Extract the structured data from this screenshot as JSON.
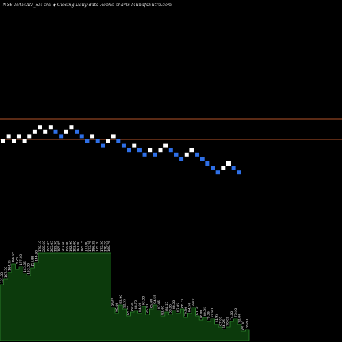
{
  "header": {
    "title": "NSE NAMAN_SM 5% ⬥ Closing Daily data Renko charts MunafaSutra.com"
  },
  "colors": {
    "background": "#000000",
    "up_brick": "#ffffff",
    "down_brick": "#2e6fe6",
    "reference_line": "#b5532a",
    "volume_fill": "#0c3a0c",
    "volume_stroke": "#2f8a2f"
  },
  "chart_data": {
    "type": "renko",
    "brick_percent": 5,
    "reference_lines": [
      {
        "label": "upper"
      },
      {
        "label": "lower"
      }
    ],
    "bricks": [
      {
        "i": 0,
        "level": 0,
        "dir": "up"
      },
      {
        "i": 1,
        "level": 1,
        "dir": "up"
      },
      {
        "i": 2,
        "level": 0,
        "dir": "up"
      },
      {
        "i": 3,
        "level": 1,
        "dir": "up"
      },
      {
        "i": 4,
        "level": 0,
        "dir": "up"
      },
      {
        "i": 5,
        "level": 1,
        "dir": "up"
      },
      {
        "i": 6,
        "level": 2,
        "dir": "up"
      },
      {
        "i": 7,
        "level": 3,
        "dir": "up"
      },
      {
        "i": 8,
        "level": 2,
        "dir": "up"
      },
      {
        "i": 9,
        "level": 3,
        "dir": "up"
      },
      {
        "i": 10,
        "level": 2,
        "dir": "down"
      },
      {
        "i": 11,
        "level": 1,
        "dir": "down"
      },
      {
        "i": 12,
        "level": 2,
        "dir": "up"
      },
      {
        "i": 13,
        "level": 3,
        "dir": "up"
      },
      {
        "i": 14,
        "level": 2,
        "dir": "down"
      },
      {
        "i": 15,
        "level": 1,
        "dir": "down"
      },
      {
        "i": 16,
        "level": 0,
        "dir": "down"
      },
      {
        "i": 17,
        "level": 1,
        "dir": "up"
      },
      {
        "i": 18,
        "level": 0,
        "dir": "down"
      },
      {
        "i": 19,
        "level": -1,
        "dir": "down"
      },
      {
        "i": 20,
        "level": 0,
        "dir": "up"
      },
      {
        "i": 21,
        "level": 1,
        "dir": "up"
      },
      {
        "i": 22,
        "level": 0,
        "dir": "down"
      },
      {
        "i": 23,
        "level": -1,
        "dir": "down"
      },
      {
        "i": 24,
        "level": -2,
        "dir": "down"
      },
      {
        "i": 25,
        "level": -1,
        "dir": "up"
      },
      {
        "i": 26,
        "level": -2,
        "dir": "down"
      },
      {
        "i": 27,
        "level": -3,
        "dir": "down"
      },
      {
        "i": 28,
        "level": -2,
        "dir": "up"
      },
      {
        "i": 29,
        "level": -3,
        "dir": "down"
      },
      {
        "i": 30,
        "level": -2,
        "dir": "up"
      },
      {
        "i": 31,
        "level": -1,
        "dir": "up"
      },
      {
        "i": 32,
        "level": -2,
        "dir": "down"
      },
      {
        "i": 33,
        "level": -3,
        "dir": "down"
      },
      {
        "i": 34,
        "level": -4,
        "dir": "down"
      },
      {
        "i": 35,
        "level": -3,
        "dir": "up"
      },
      {
        "i": 36,
        "level": -2,
        "dir": "up"
      },
      {
        "i": 37,
        "level": -3,
        "dir": "down"
      },
      {
        "i": 38,
        "level": -4,
        "dir": "down"
      },
      {
        "i": 39,
        "level": -5,
        "dir": "down"
      },
      {
        "i": 40,
        "level": -6,
        "dir": "down"
      },
      {
        "i": 41,
        "level": -7,
        "dir": "down"
      },
      {
        "i": 42,
        "level": -6,
        "dir": "up"
      },
      {
        "i": 43,
        "level": -5,
        "dir": "up"
      },
      {
        "i": 44,
        "level": -6,
        "dir": "down"
      },
      {
        "i": 45,
        "level": -7,
        "dir": "down"
      }
    ],
    "volume": [
      {
        "i": 0,
        "v": 82,
        "label": "151.00"
      },
      {
        "i": 1,
        "v": 90,
        "label": "167.50"
      },
      {
        "i": 2,
        "v": 100,
        "label": "164.35"
      },
      {
        "i": 3,
        "v": 112,
        "label": "198.85"
      },
      {
        "i": 4,
        "v": 104,
        "label": "179.25"
      },
      {
        "i": 5,
        "v": 108,
        "label": "177.40"
      },
      {
        "i": 6,
        "v": 98,
        "label": "163.85"
      },
      {
        "i": 7,
        "v": 95,
        "label": "162.00"
      },
      {
        "i": 8,
        "v": 106,
        "label": "157.00"
      },
      {
        "i": 9,
        "v": 114,
        "label": "144.90"
      },
      {
        "i": 10,
        "v": 128,
        "label": "170.10"
      },
      {
        "i": 11,
        "v": 128,
        "label": "200.60"
      },
      {
        "i": 12,
        "v": 128,
        "label": "195.85"
      },
      {
        "i": 13,
        "v": 128,
        "label": "205.05"
      },
      {
        "i": 14,
        "v": 128,
        "label": "199.90"
      },
      {
        "i": 15,
        "v": 128,
        "label": "195.85"
      },
      {
        "i": 16,
        "v": 128,
        "label": "202.60"
      },
      {
        "i": 17,
        "v": 128,
        "label": "199.60"
      },
      {
        "i": 18,
        "v": 128,
        "label": "192.90"
      },
      {
        "i": 19,
        "v": 128,
        "label": "193.00"
      },
      {
        "i": 20,
        "v": 128,
        "label": "181.80"
      },
      {
        "i": 21,
        "v": 128,
        "label": "185.15"
      },
      {
        "i": 22,
        "v": 128,
        "label": "177.00"
      },
      {
        "i": 23,
        "v": 128,
        "label": "173.75"
      },
      {
        "i": 24,
        "v": 128,
        "label": "186.25"
      },
      {
        "i": 25,
        "v": 128,
        "label": "175.70"
      },
      {
        "i": 26,
        "v": 128,
        "label": "175.50"
      },
      {
        "i": 27,
        "v": 128,
        "label": "178.20"
      },
      {
        "i": 28,
        "v": 128,
        "label": "160.75"
      },
      {
        "i": 29,
        "v": 48,
        "label": "96.65"
      },
      {
        "i": 30,
        "v": 40,
        "label": "90.40"
      },
      {
        "i": 31,
        "v": 52,
        "label": "93.90"
      },
      {
        "i": 32,
        "v": 46,
        "label": "92.55"
      },
      {
        "i": 33,
        "v": 36,
        "label": "85.55"
      },
      {
        "i": 34,
        "v": 42,
        "label": "82.40"
      },
      {
        "i": 35,
        "v": 44,
        "label": "88.75"
      },
      {
        "i": 36,
        "v": 40,
        "label": "84.60"
      },
      {
        "i": 37,
        "v": 50,
        "label": "93.00"
      },
      {
        "i": 38,
        "v": 38,
        "label": "86.40"
      },
      {
        "i": 39,
        "v": 46,
        "label": "89.80"
      },
      {
        "i": 40,
        "v": 52,
        "label": "94.55"
      },
      {
        "i": 41,
        "v": 44,
        "label": "87.45"
      },
      {
        "i": 42,
        "v": 36,
        "label": "83.60"
      },
      {
        "i": 43,
        "v": 42,
        "label": "84.25"
      },
      {
        "i": 44,
        "v": 38,
        "label": "80.85"
      },
      {
        "i": 45,
        "v": 44,
        "label": "88.00"
      },
      {
        "i": 46,
        "v": 40,
        "label": "82.05"
      },
      {
        "i": 47,
        "v": 46,
        "label": "86.75"
      },
      {
        "i": 48,
        "v": 34,
        "label": "79.30"
      },
      {
        "i": 49,
        "v": 40,
        "label": "84.50"
      },
      {
        "i": 50,
        "v": 48,
        "label": "89.00"
      },
      {
        "i": 51,
        "v": 36,
        "label": "81.70"
      },
      {
        "i": 52,
        "v": 30,
        "label": "78.00"
      },
      {
        "i": 53,
        "v": 34,
        "label": "80.95"
      },
      {
        "i": 54,
        "v": 28,
        "label": "75.25"
      },
      {
        "i": 55,
        "v": 32,
        "label": "77.80"
      },
      {
        "i": 56,
        "v": 24,
        "label": "71.95"
      },
      {
        "i": 57,
        "v": 20,
        "label": "67.00"
      },
      {
        "i": 58,
        "v": 16,
        "label": "64.25"
      },
      {
        "i": 59,
        "v": 20,
        "label": "70.95"
      },
      {
        "i": 60,
        "v": 28,
        "label": "74.60"
      },
      {
        "i": 61,
        "v": 32,
        "label": "76.40"
      },
      {
        "i": 62,
        "v": 24,
        "label": "72.80"
      },
      {
        "i": 63,
        "v": 14,
        "label": "65.30"
      },
      {
        "i": 64,
        "v": 16,
        "label": "63.80"
      }
    ]
  }
}
